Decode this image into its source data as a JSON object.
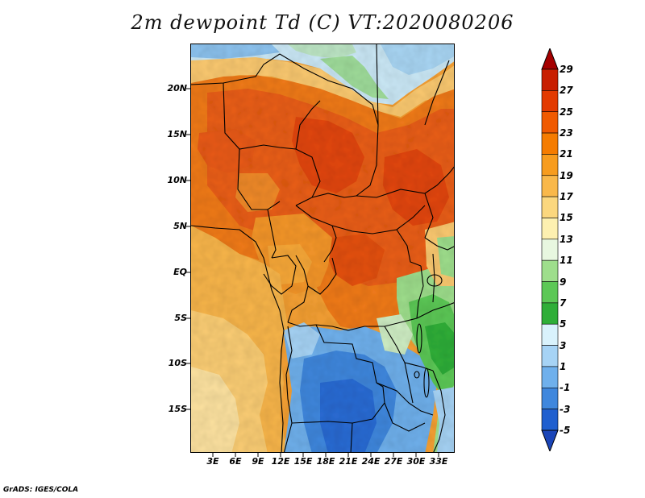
{
  "title": "2m dewpoint Td (C) VT:2020080206",
  "credit": "GrADS: IGES/COLA",
  "map": {
    "lat_labels": [
      "20N",
      "15N",
      "10N",
      "5N",
      "EQ",
      "5S",
      "10S",
      "15S"
    ],
    "lon_labels": [
      "3E",
      "6E",
      "9E",
      "12E",
      "15E",
      "18E",
      "21E",
      "24E",
      "27E",
      "30E",
      "33E"
    ]
  },
  "colorbar": {
    "labels": [
      "29",
      "27",
      "25",
      "23",
      "21",
      "19",
      "17",
      "15",
      "13",
      "11",
      "9",
      "7",
      "5",
      "3",
      "1",
      "-1",
      "-3",
      "-5"
    ],
    "colors": [
      "#a50000",
      "#c81e00",
      "#e33a00",
      "#f05a00",
      "#f57c00",
      "#f79c1e",
      "#f9b84a",
      "#fbd77e",
      "#fdf0b0",
      "#e8f7e0",
      "#9ede8c",
      "#5cc856",
      "#2fae38",
      "#d9f2fc",
      "#a6d3f5",
      "#6fb0ec",
      "#3f87dd",
      "#1f5fcf",
      "#1a45b8"
    ]
  }
}
